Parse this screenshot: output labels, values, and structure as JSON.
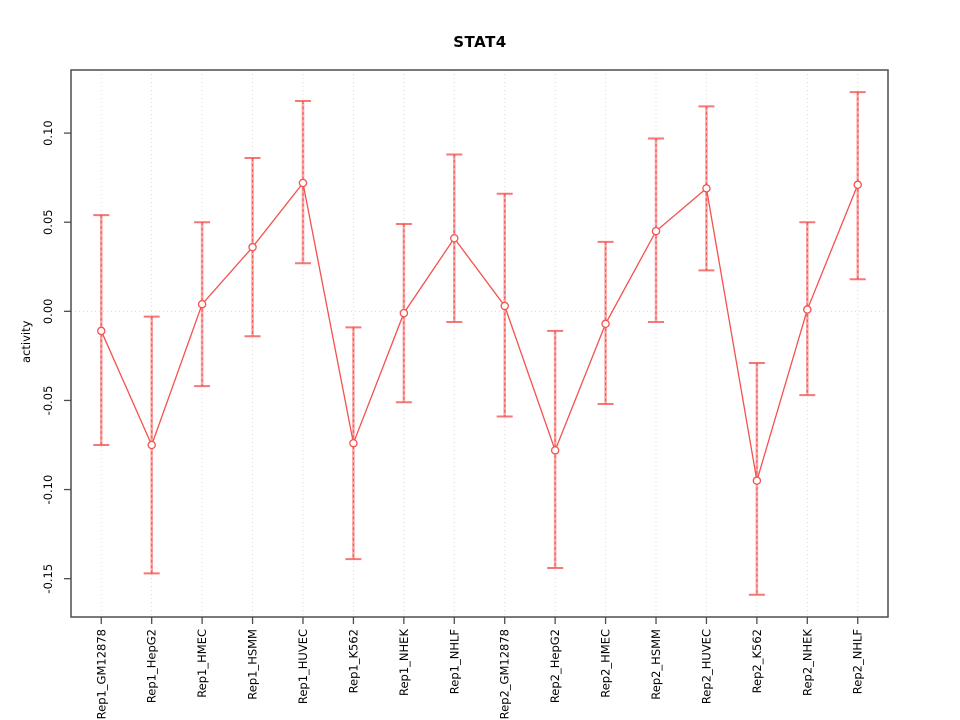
{
  "chart_data": {
    "type": "line",
    "title": "STAT4",
    "ylabel": "activity",
    "xlabel": "",
    "marker": "open-circle",
    "categories": [
      "Rep1_GM12878",
      "Rep1_HepG2",
      "Rep1_HMEC",
      "Rep1_HSMM",
      "Rep1_HUVEC",
      "Rep1_K562",
      "Rep1_NHEK",
      "Rep1_NHLF",
      "Rep2_GM12878",
      "Rep2_HepG2",
      "Rep2_HMEC",
      "Rep2_HSMM",
      "Rep2_HUVEC",
      "Rep2_K562",
      "Rep2_NHEK",
      "Rep2_NHLF"
    ],
    "series": [
      {
        "name": "activity",
        "values": [
          -0.011,
          -0.075,
          0.004,
          0.036,
          0.072,
          -0.074,
          -0.001,
          0.041,
          0.003,
          -0.078,
          -0.007,
          0.045,
          0.069,
          -0.095,
          0.001,
          0.071
        ],
        "upper": [
          0.054,
          -0.003,
          0.05,
          0.086,
          0.118,
          -0.009,
          0.049,
          0.088,
          0.066,
          -0.011,
          0.039,
          0.097,
          0.115,
          -0.029,
          0.05,
          0.123
        ],
        "lower": [
          -0.075,
          -0.147,
          -0.042,
          -0.014,
          0.027,
          -0.139,
          -0.051,
          -0.006,
          -0.059,
          -0.144,
          -0.052,
          -0.006,
          0.023,
          -0.159,
          -0.047,
          0.018
        ]
      }
    ],
    "yticks": [
      0.1,
      0.05,
      0.0,
      -0.05,
      -0.1,
      -0.15
    ],
    "ytick_labels": [
      "0.10",
      "0.05",
      "0.00",
      "-0.05",
      "-0.10",
      "-0.15"
    ],
    "ylim": [
      -0.1715,
      0.1354
    ],
    "xlim": [
      0.4,
      16.6
    ],
    "grid": {
      "vertical_at_categories": true,
      "horizontal_at_zero": true,
      "style": "dotted"
    },
    "legend": null,
    "colors": {
      "line": "#f4514e",
      "error_bar": "#f4514e",
      "error_bar_faint": "#f9a9a7",
      "grid": "#d9d9d9",
      "box": "#4d4d4d",
      "text": "#000000",
      "background": "#ffffff"
    }
  }
}
